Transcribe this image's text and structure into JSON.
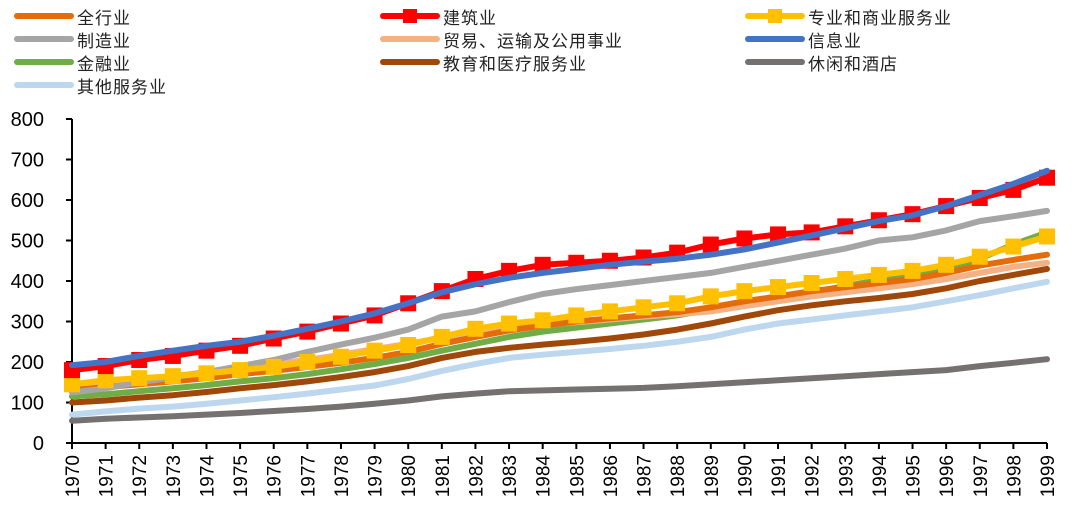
{
  "chart_data": {
    "type": "line",
    "title": "",
    "xlabel": "",
    "ylabel": "",
    "ylim": [
      0,
      800
    ],
    "yticks": [
      0,
      100,
      200,
      300,
      400,
      500,
      600,
      700,
      800
    ],
    "grid": false,
    "legend_position": "top",
    "x": [
      "1970",
      "1971",
      "1972",
      "1973",
      "1974",
      "1975",
      "1976",
      "1977",
      "1978",
      "1979",
      "1980",
      "1981",
      "1982",
      "1983",
      "1984",
      "1985",
      "1986",
      "1987",
      "1988",
      "1989",
      "1990",
      "1991",
      "1992",
      "1993",
      "1994",
      "1995",
      "1996",
      "1997",
      "1998",
      "1999"
    ],
    "series": [
      {
        "name": "全行业",
        "color": "#E46C0A",
        "marker": "none",
        "values": [
          130,
          138,
          145,
          152,
          160,
          170,
          178,
          188,
          198,
          210,
          225,
          245,
          262,
          278,
          290,
          300,
          308,
          315,
          323,
          335,
          350,
          362,
          375,
          385,
          395,
          405,
          420,
          438,
          452,
          465
        ]
      },
      {
        "name": "建筑业",
        "color": "#FF0000",
        "marker": "square",
        "values": [
          180,
          190,
          205,
          215,
          228,
          240,
          258,
          275,
          295,
          315,
          345,
          375,
          405,
          425,
          440,
          445,
          450,
          458,
          470,
          490,
          505,
          515,
          520,
          535,
          550,
          565,
          585,
          605,
          625,
          655
        ]
      },
      {
        "name": "专业和商业服务业",
        "color": "#FFC000",
        "marker": "square",
        "values": [
          145,
          155,
          160,
          165,
          172,
          180,
          188,
          200,
          213,
          228,
          242,
          262,
          282,
          295,
          303,
          315,
          325,
          335,
          345,
          362,
          375,
          385,
          395,
          405,
          415,
          425,
          440,
          460,
          485,
          510
        ]
      },
      {
        "name": "制造业",
        "color": "#A5A5A5",
        "marker": "none",
        "values": [
          125,
          135,
          150,
          162,
          175,
          190,
          205,
          225,
          243,
          260,
          280,
          312,
          325,
          348,
          368,
          380,
          390,
          400,
          410,
          420,
          435,
          450,
          465,
          480,
          500,
          508,
          525,
          548,
          560,
          573
        ]
      },
      {
        "name": "贸易、运输及公用事业",
        "color": "#F4B183",
        "marker": "none",
        "values": [
          140,
          148,
          158,
          165,
          175,
          183,
          195,
          205,
          218,
          232,
          245,
          260,
          272,
          283,
          292,
          298,
          305,
          312,
          318,
          325,
          338,
          350,
          362,
          372,
          382,
          392,
          405,
          420,
          435,
          445
        ]
      },
      {
        "name": "信息业",
        "color": "#4472C4",
        "marker": "none",
        "values": [
          192,
          200,
          215,
          228,
          240,
          250,
          265,
          282,
          300,
          320,
          345,
          372,
          392,
          408,
          420,
          430,
          440,
          448,
          455,
          465,
          478,
          495,
          512,
          530,
          548,
          562,
          585,
          612,
          640,
          672
        ]
      },
      {
        "name": "金融业",
        "color": "#70AD47",
        "marker": "none",
        "values": [
          115,
          120,
          128,
          135,
          143,
          152,
          160,
          170,
          182,
          195,
          210,
          228,
          245,
          262,
          275,
          285,
          295,
          305,
          315,
          330,
          342,
          358,
          372,
          388,
          402,
          415,
          430,
          455,
          490,
          520
        ]
      },
      {
        "name": "教育和医疗服务业",
        "color": "#A0480A",
        "marker": "none",
        "values": [
          100,
          105,
          112,
          118,
          126,
          135,
          143,
          152,
          163,
          175,
          190,
          210,
          225,
          235,
          243,
          250,
          258,
          268,
          280,
          295,
          312,
          328,
          340,
          350,
          358,
          368,
          382,
          400,
          415,
          430
        ]
      },
      {
        "name": "休闲和酒店",
        "color": "#767171",
        "marker": "none",
        "values": [
          55,
          60,
          63,
          66,
          70,
          74,
          79,
          84,
          90,
          97,
          105,
          115,
          122,
          128,
          130,
          132,
          134,
          136,
          140,
          145,
          150,
          155,
          160,
          165,
          170,
          175,
          180,
          190,
          198,
          207
        ]
      },
      {
        "name": "其他服务业",
        "color": "#BDD7EE",
        "marker": "none",
        "values": [
          70,
          78,
          85,
          90,
          97,
          105,
          113,
          122,
          132,
          142,
          158,
          178,
          195,
          210,
          218,
          225,
          232,
          240,
          250,
          262,
          280,
          295,
          305,
          315,
          325,
          335,
          350,
          365,
          382,
          398
        ]
      }
    ]
  },
  "legend_layout_order": [
    0,
    1,
    2,
    3,
    4,
    5,
    6,
    7,
    8,
    9
  ]
}
